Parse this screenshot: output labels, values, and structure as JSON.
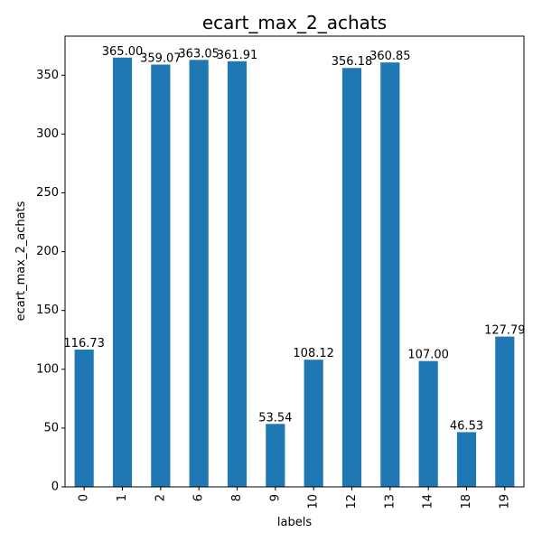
{
  "chart_data": {
    "type": "bar",
    "title": "ecart_max_2_achats",
    "xlabel": "labels",
    "ylabel": "ecart_max_2_achats",
    "categories": [
      "0",
      "1",
      "2",
      "6",
      "8",
      "9",
      "10",
      "12",
      "13",
      "14",
      "18",
      "19"
    ],
    "values": [
      116.73,
      365.0,
      359.07,
      363.05,
      361.91,
      53.54,
      108.12,
      356.18,
      360.85,
      107.0,
      46.53,
      127.79
    ],
    "data_labels": [
      "116.73",
      "365.00",
      "359.07",
      "363.05",
      "361.91",
      "53.54",
      "108.12",
      "356.18",
      "360.85",
      "107.00",
      "46.53",
      "127.79"
    ],
    "ylim": [
      0,
      383.25
    ],
    "yticks": [
      0,
      50,
      100,
      150,
      200,
      250,
      300,
      350
    ],
    "bar_color": "#1f77b4",
    "grid": false,
    "legend": "none"
  }
}
